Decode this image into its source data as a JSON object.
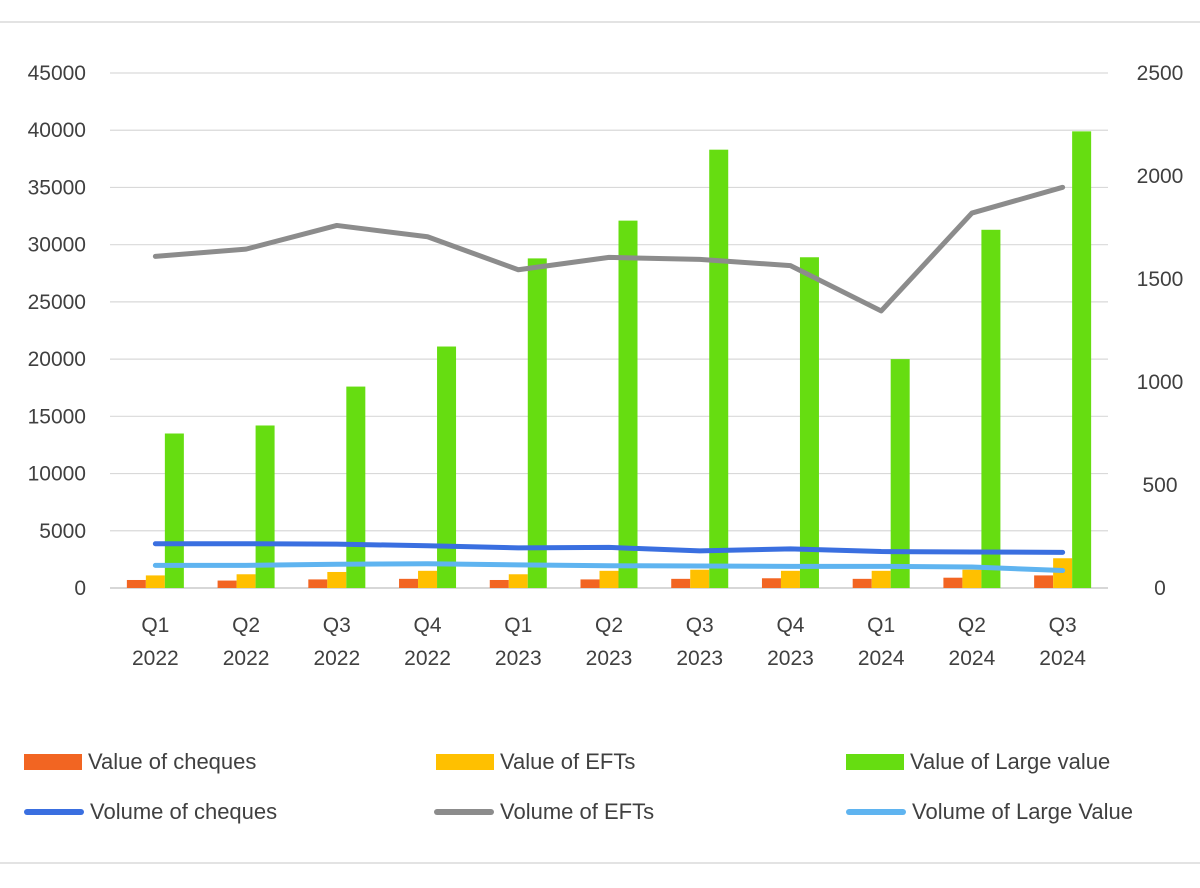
{
  "chart_data": {
    "type": "bar",
    "title": "",
    "xlabel": "",
    "ylabel": "",
    "categories": [
      [
        "Q1",
        "2022"
      ],
      [
        "Q2",
        "2022"
      ],
      [
        "Q3",
        "2022"
      ],
      [
        "Q4",
        "2022"
      ],
      [
        "Q1",
        "2023"
      ],
      [
        "Q2",
        "2023"
      ],
      [
        "Q3",
        "2023"
      ],
      [
        "Q4",
        "2023"
      ],
      [
        "Q1",
        "2024"
      ],
      [
        "Q2",
        "2024"
      ],
      [
        "Q3",
        "2024"
      ]
    ],
    "ylim": [
      0,
      45000
    ],
    "y_ticks": [
      "0",
      "5000",
      "10000",
      "15000",
      "20000",
      "25000",
      "30000",
      "35000",
      "40000",
      "45000"
    ],
    "y2lim": [
      0,
      2500
    ],
    "y2_ticks": [
      "0",
      "500",
      "1000",
      "1500",
      "2000",
      "2500"
    ],
    "grid": true,
    "legend_position": "bottom",
    "bar_series": [
      {
        "name": "Value of cheques",
        "color": "#f26522",
        "axis": "left",
        "values": [
          700,
          650,
          750,
          800,
          700,
          750,
          800,
          850,
          800,
          900,
          1100
        ]
      },
      {
        "name": "Value of EFTs",
        "color": "#ffc000",
        "axis": "left",
        "values": [
          1100,
          1200,
          1400,
          1500,
          1200,
          1500,
          1600,
          1500,
          1500,
          1600,
          2600
        ]
      },
      {
        "name": "Value of Large value",
        "color": "#66dd11",
        "axis": "left",
        "values": [
          13500,
          14200,
          17600,
          21100,
          28800,
          32100,
          38300,
          28900,
          20000,
          31300,
          39900
        ]
      }
    ],
    "line_series": [
      {
        "name": "Volume of cheques",
        "color": "#3a6fe0",
        "axis": "right",
        "values": [
          215,
          215,
          213,
          205,
          195,
          197,
          180,
          190,
          177,
          175,
          173
        ]
      },
      {
        "name": "Volume of EFTs",
        "color": "#8c8c8c",
        "axis": "right",
        "values": [
          1610,
          1645,
          1760,
          1705,
          1545,
          1605,
          1595,
          1565,
          1345,
          1820,
          1945
        ]
      },
      {
        "name": "Volume of Large Value",
        "color": "#5fb4f0",
        "axis": "right",
        "values": [
          110,
          110,
          115,
          118,
          112,
          108,
          107,
          105,
          105,
          102,
          85
        ]
      }
    ]
  }
}
